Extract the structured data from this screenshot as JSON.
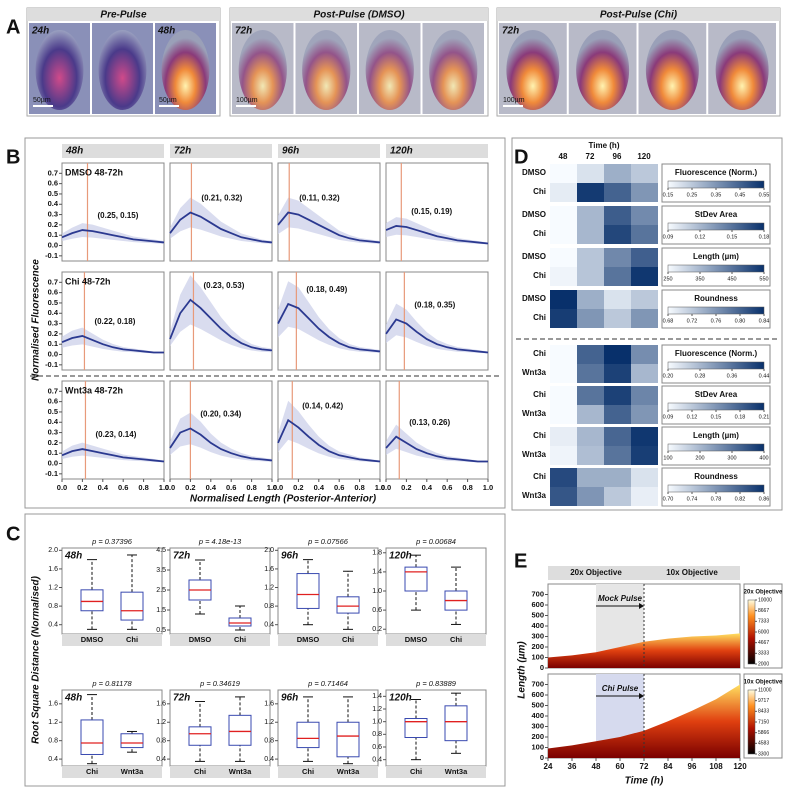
{
  "panel_labels": [
    "A",
    "B",
    "C",
    "D",
    "E"
  ],
  "panel_a": {
    "groups": [
      "Pre-Pulse",
      "Post-Pulse (DMSO)",
      "Post-Pulse (Chi)"
    ],
    "time_labels": [
      "24h",
      "48h",
      "72h",
      "72h"
    ],
    "scale_bars": [
      "50µm",
      "50µm",
      "100µm",
      "100µm"
    ]
  },
  "panel_b": {
    "ylabel": "Normalised Fluorescence",
    "xlabel": "Normalised Length (Posterior-Anterior)",
    "columns": [
      "48h",
      "72h",
      "96h",
      "120h"
    ],
    "x": [
      0,
      0.1,
      0.2,
      0.3,
      0.4,
      0.5,
      0.6,
      0.7,
      0.8,
      0.9,
      1
    ],
    "xlim": [
      0,
      1
    ],
    "xticks": [
      {
        "value": 0,
        "label": "0.0"
      },
      0.2,
      0.4,
      0.6,
      0.8,
      {
        "value": 1,
        "label": "1.0"
      }
    ],
    "ylim": [
      -0.15,
      0.8
    ],
    "yticks": [
      -0.1,
      {
        "value": 0,
        "label": "0.0"
      },
      0.1,
      0.2,
      0.3,
      0.4,
      0.5,
      0.6,
      0.7
    ],
    "line_color": "#2b3990",
    "peak_color": "#e89a7a",
    "band_color": "#c9cde8",
    "rows": [
      {
        "name": "DMSO 48-72h",
        "series": [
          {
            "values": [
              0.08,
              0.12,
              0.15,
              0.14,
              0.12,
              0.1,
              0.08,
              0.06,
              0.05,
              0.04,
              0.03
            ],
            "peak_x": 0.25,
            "annotation": "(0.25, 0.15)"
          },
          {
            "values": [
              0.12,
              0.25,
              0.32,
              0.28,
              0.22,
              0.16,
              0.12,
              0.08,
              0.06,
              0.04,
              0.03
            ],
            "peak_x": 0.21,
            "annotation": "(0.21, 0.32)"
          },
          {
            "values": [
              0.2,
              0.32,
              0.3,
              0.25,
              0.2,
              0.15,
              0.1,
              0.07,
              0.05,
              0.04,
              0.03
            ],
            "peak_x": 0.11,
            "annotation": "(0.11, 0.32)"
          },
          {
            "values": [
              0.15,
              0.19,
              0.18,
              0.15,
              0.12,
              0.09,
              0.07,
              0.05,
              0.04,
              0.03,
              0.02
            ],
            "peak_x": 0.15,
            "annotation": "(0.15, 0.19)"
          }
        ]
      },
      {
        "name": "Chi 48-72h",
        "series": [
          {
            "values": [
              0.12,
              0.16,
              0.18,
              0.14,
              0.1,
              0.07,
              0.05,
              0.04,
              0.03,
              0.02,
              0.02
            ],
            "peak_x": 0.22,
            "annotation": "(0.22, 0.18)"
          },
          {
            "values": [
              0.15,
              0.4,
              0.53,
              0.45,
              0.35,
              0.25,
              0.17,
              0.11,
              0.07,
              0.05,
              0.04
            ],
            "peak_x": 0.23,
            "annotation": "(0.23, 0.53)"
          },
          {
            "values": [
              0.3,
              0.49,
              0.45,
              0.35,
              0.25,
              0.17,
              0.11,
              0.07,
              0.05,
              0.04,
              0.03
            ],
            "peak_x": 0.18,
            "annotation": "(0.18, 0.49)"
          },
          {
            "values": [
              0.2,
              0.34,
              0.3,
              0.22,
              0.15,
              0.1,
              0.07,
              0.05,
              0.04,
              0.03,
              0.02
            ],
            "peak_x": 0.18,
            "annotation": "(0.18, 0.35)"
          }
        ]
      },
      {
        "name": "Wnt3a 48-72h",
        "series": [
          {
            "values": [
              0.08,
              0.12,
              0.14,
              0.12,
              0.1,
              0.08,
              0.06,
              0.05,
              0.04,
              0.03,
              0.02
            ],
            "peak_x": 0.23,
            "annotation": "(0.23, 0.14)"
          },
          {
            "values": [
              0.15,
              0.3,
              0.34,
              0.28,
              0.2,
              0.14,
              0.1,
              0.07,
              0.05,
              0.04,
              0.03
            ],
            "peak_x": 0.2,
            "annotation": "(0.20, 0.34)"
          },
          {
            "values": [
              0.2,
              0.42,
              0.35,
              0.26,
              0.18,
              0.12,
              0.08,
              0.06,
              0.04,
              0.03,
              0.02
            ],
            "peak_x": 0.14,
            "annotation": "(0.14, 0.42)"
          },
          {
            "values": [
              0.15,
              0.26,
              0.2,
              0.14,
              0.1,
              0.07,
              0.05,
              0.04,
              0.03,
              0.02,
              0.02
            ],
            "peak_x": 0.13,
            "annotation": "(0.13, 0.26)"
          }
        ]
      }
    ]
  },
  "panel_c": {
    "ylabel": "Root Square Distance (Normalised)",
    "box_color": "#3a4ab0",
    "median_color": "#e02020",
    "rows": [
      {
        "categories": [
          "DMSO",
          "Chi"
        ],
        "plots": [
          {
            "title": "48h",
            "p": "p = 0.37396",
            "p_color": "#111111",
            "ylim": [
              0.2,
              2.05
            ],
            "yticks": [
              0.4,
              0.8,
              1.2,
              1.6,
              {
                "value": 2,
                "label": "2.0"
              }
            ],
            "boxes": [
              [
                0.3,
                0.7,
                0.9,
                1.15,
                1.8
              ],
              [
                0.3,
                0.5,
                0.7,
                1.1,
                1.9
              ]
            ]
          },
          {
            "title": "72h",
            "p": "p = 4.18e-13",
            "p_color": "#e02020",
            "ylim": [
              0.3,
              4.6
            ],
            "yticks": [
              0.5,
              1.5,
              2.5,
              3.5,
              4.5
            ],
            "boxes": [
              [
                1.3,
                2,
                2.5,
                3,
                4
              ],
              [
                0.5,
                0.7,
                0.85,
                1.1,
                1.7
              ]
            ]
          },
          {
            "title": "96h",
            "p": "p = 0.07566",
            "p_color": "#111111",
            "ylim": [
              0.2,
              2.05
            ],
            "yticks": [
              0.4,
              0.8,
              1.2,
              1.6,
              {
                "value": 2,
                "label": "2.0"
              }
            ],
            "boxes": [
              [
                0.4,
                0.75,
                1.05,
                1.5,
                1.8
              ],
              [
                0.3,
                0.65,
                0.8,
                1,
                1.55
              ]
            ]
          },
          {
            "title": "120h",
            "p": "p = 0.00684",
            "p_color": "#e02020",
            "ylim": [
              0.1,
              1.9
            ],
            "yticks": [
              0.2,
              0.6,
              {
                "value": 1,
                "label": "1.0"
              },
              1.4,
              1.8
            ],
            "boxes": [
              [
                0.6,
                1,
                1.4,
                1.5,
                1.75
              ],
              [
                0.3,
                0.6,
                0.8,
                1,
                1.5
              ]
            ]
          }
        ]
      },
      {
        "categories": [
          "Chi",
          "Wnt3a"
        ],
        "plots": [
          {
            "title": "48h",
            "p": "p = 0.81178",
            "p_color": "#111111",
            "ylim": [
              0.25,
              1.9
            ],
            "yticks": [
              0.4,
              0.8,
              1.2,
              1.6
            ],
            "boxes": [
              [
                0.3,
                0.5,
                0.75,
                1.25,
                1.8
              ],
              [
                0.55,
                0.65,
                0.75,
                0.95,
                1
              ]
            ]
          },
          {
            "title": "72h",
            "p": "p = 0.34619",
            "p_color": "#111111",
            "ylim": [
              0.25,
              1.9
            ],
            "yticks": [
              0.4,
              0.8,
              1.2,
              1.6
            ],
            "boxes": [
              [
                0.35,
                0.7,
                0.95,
                1.1,
                1.65
              ],
              [
                0.35,
                0.7,
                1,
                1.35,
                1.75
              ]
            ]
          },
          {
            "title": "96h",
            "p": "p = 0.71464",
            "p_color": "#111111",
            "ylim": [
              0.25,
              1.9
            ],
            "yticks": [
              0.4,
              0.8,
              1.2,
              1.6
            ],
            "boxes": [
              [
                0.35,
                0.65,
                0.85,
                1.2,
                1.75
              ],
              [
                0.3,
                0.45,
                0.9,
                1.2,
                1.75
              ]
            ]
          },
          {
            "title": "120h",
            "p": "p = 0.83889",
            "p_color": "#111111",
            "ylim": [
              0.3,
              1.5
            ],
            "yticks": [
              0.4,
              0.6,
              0.8,
              {
                "value": 1,
                "label": "1.0"
              },
              1.2,
              1.4
            ],
            "boxes": [
              [
                0.4,
                0.75,
                1,
                1.05,
                1.35
              ],
              [
                0.5,
                0.7,
                1,
                1.25,
                1.45
              ]
            ]
          }
        ]
      }
    ]
  },
  "panel_d": {
    "time_label": "Time (h)",
    "times": [
      "48",
      "72",
      "96",
      "120"
    ],
    "colormap": [
      "#f7fbff",
      "#08306b"
    ],
    "blocks": [
      {
        "rows": [
          "DMSO",
          "Chi"
        ],
        "values": [
          [
            0.15,
            0.2,
            0.3,
            0.25
          ],
          [
            0.18,
            0.53,
            0.45,
            0.35
          ]
        ],
        "legend": "Fluorescence (Norm.)",
        "lim": [
          0.15,
          0.55
        ],
        "ticks": [
          0.15,
          0.25,
          0.35,
          0.45,
          0.55
        ]
      },
      {
        "rows": [
          "DMSO",
          "Chi"
        ],
        "values": [
          [
            0.09,
            0.12,
            0.16,
            0.14
          ],
          [
            0.09,
            0.12,
            0.17,
            0.15
          ]
        ],
        "legend": "StDev Area",
        "lim": [
          0.09,
          0.18
        ],
        "ticks": [
          0.09,
          0.12,
          0.15,
          0.18
        ]
      },
      {
        "rows": [
          "DMSO",
          "Chi"
        ],
        "values": [
          [
            250,
            330,
            420,
            480
          ],
          [
            260,
            330,
            450,
            540
          ]
        ],
        "legend": "Length (µm)",
        "lim": [
          250,
          550
        ],
        "ticks": [
          250,
          350,
          450,
          550
        ]
      },
      {
        "rows": [
          "DMSO",
          "Chi"
        ],
        "values": [
          [
            0.84,
            0.74,
            0.7,
            0.72
          ],
          [
            0.83,
            0.76,
            0.72,
            0.76
          ]
        ],
        "legend": "Roundness",
        "lim": [
          0.68,
          0.84
        ],
        "ticks": [
          0.68,
          0.72,
          0.76,
          {
            "value": 0.8,
            "label": "0.80"
          },
          0.84
        ]
      },
      {
        "rows": [
          "Chi",
          "Wnt3a"
        ],
        "values": [
          [
            0.2,
            0.38,
            0.44,
            0.33
          ],
          [
            0.2,
            0.36,
            0.42,
            0.28
          ]
        ],
        "legend": "Fluorescence (Norm.)",
        "lim": [
          0.2,
          0.44
        ],
        "ticks": [
          {
            "value": 0.2,
            "label": "0.20"
          },
          0.28,
          0.36,
          0.44
        ]
      },
      {
        "rows": [
          "Chi",
          "Wnt3a"
        ],
        "values": [
          [
            0.09,
            0.17,
            0.2,
            0.16
          ],
          [
            0.09,
            0.13,
            0.18,
            0.15
          ]
        ],
        "legend": "StDev Area",
        "lim": [
          0.09,
          0.21
        ],
        "ticks": [
          0.09,
          0.12,
          0.15,
          0.18,
          0.21
        ]
      },
      {
        "rows": [
          "Chi",
          "Wnt3a"
        ],
        "values": [
          [
            120,
            200,
            320,
            390
          ],
          [
            110,
            190,
            300,
            380
          ]
        ],
        "legend": "Length (µm)",
        "lim": [
          100,
          400
        ],
        "ticks": [
          100,
          200,
          300,
          400
        ]
      },
      {
        "rows": [
          "Chi",
          "Wnt3a"
        ],
        "values": [
          [
            0.84,
            0.76,
            0.76,
            0.72
          ],
          [
            0.83,
            0.78,
            0.74,
            0.71
          ]
        ],
        "legend": "Roundness",
        "lim": [
          0.7,
          0.86
        ],
        "ticks": [
          {
            "value": 0.7,
            "label": "0.70"
          },
          0.74,
          0.78,
          0.82,
          0.86
        ]
      }
    ]
  },
  "panel_e": {
    "ylabel": "Length (µm)",
    "xlabel": "Time (h)",
    "xlim": [
      24,
      120
    ],
    "xticks": [
      24,
      36,
      48,
      60,
      72,
      84,
      96,
      108,
      120
    ],
    "ylim": [
      0,
      800
    ],
    "yticks": [
      0,
      100,
      200,
      300,
      400,
      500,
      600,
      700
    ],
    "objective_labels": [
      "20x Objective",
      "10x Objective"
    ],
    "switch_x": 72,
    "plots": [
      {
        "pulse": "Mock Pulse",
        "pulse_range": [
          48,
          72
        ],
        "pulse_color": "#e6e6e6",
        "x": [
          24,
          36,
          48,
          60,
          72,
          84,
          96,
          108,
          120
        ],
        "values": [
          100,
          120,
          150,
          200,
          250,
          280,
          300,
          310,
          330
        ],
        "colorbar": {
          "title": "20x Objective",
          "ticks": [
            10000,
            8667,
            7333,
            6000,
            4667,
            3333,
            2000
          ]
        }
      },
      {
        "pulse": "Chi Pulse",
        "pulse_range": [
          48,
          72
        ],
        "pulse_color": "#d6daee",
        "x": [
          24,
          36,
          48,
          60,
          72,
          84,
          96,
          108,
          120
        ],
        "values": [
          90,
          120,
          160,
          200,
          260,
          350,
          450,
          560,
          700
        ],
        "colorbar": {
          "title": "10x Objective",
          "ticks": [
            11000,
            9717,
            8433,
            7150,
            5866,
            4583,
            3300
          ]
        }
      }
    ]
  }
}
